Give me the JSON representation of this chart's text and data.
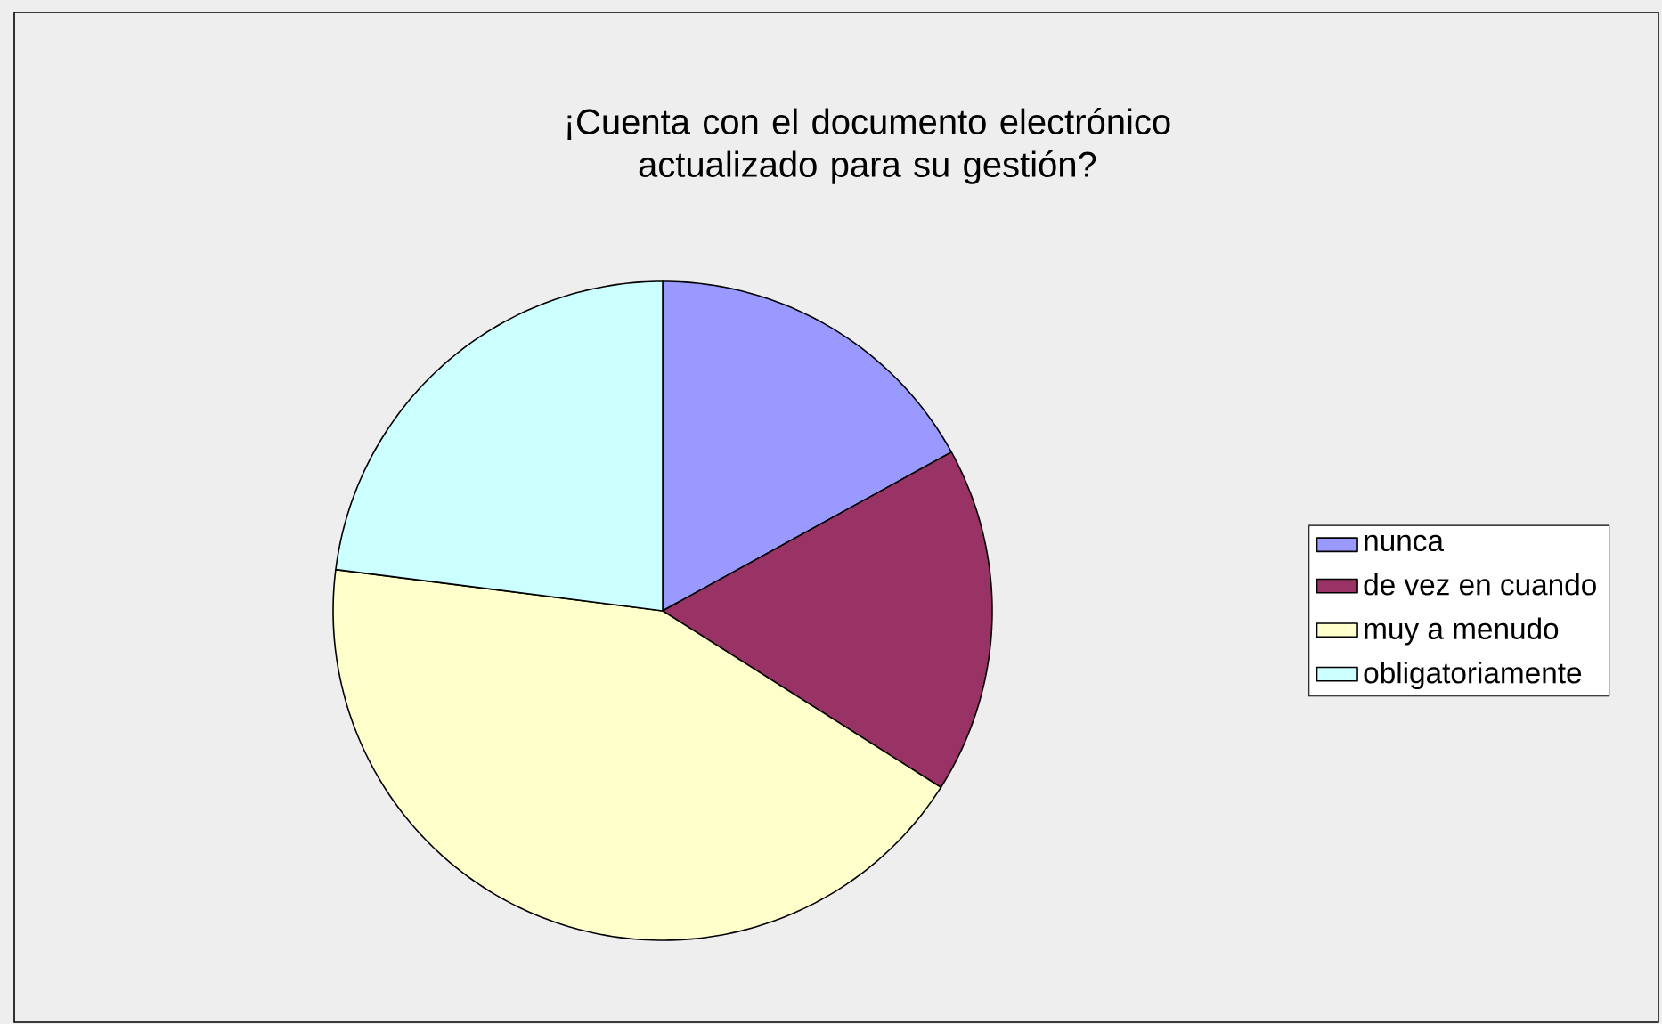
{
  "chart_data": {
    "type": "pie",
    "title": "¡Cuenta con el documento electrónico actualizado para su gestión?",
    "categories": [
      "nunca",
      "de vez en cuando",
      "muy a menudo",
      "obligatoriamente"
    ],
    "values": [
      17,
      17,
      43,
      23
    ],
    "colors": [
      "#9999ff",
      "#993366",
      "#ffffcc",
      "#ccffff"
    ],
    "legend": "right"
  }
}
